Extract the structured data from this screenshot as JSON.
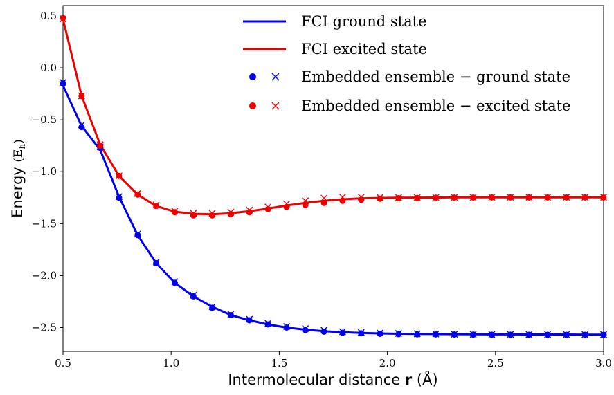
{
  "chart_data": {
    "type": "line",
    "xlabel": "Intermolecular distance",
    "xlabel_bold": "r",
    "xlabel_unit": "(Å)",
    "ylabel": "Energy",
    "ylabel_unit": "(E",
    "ylabel_sub": "h",
    "ylabel_close": ")",
    "xlim": [
      0.5,
      3.0
    ],
    "ylim": [
      -2.73,
      0.6
    ],
    "xticks": [
      {
        "v": 0.5,
        "label": "0.5"
      },
      {
        "v": 1.0,
        "label": "1.0"
      },
      {
        "v": 1.5,
        "label": "1.5"
      },
      {
        "v": 2.0,
        "label": "2.0"
      },
      {
        "v": 2.5,
        "label": "2.5"
      },
      {
        "v": 3.0,
        "label": "3.0"
      }
    ],
    "yticks": [
      {
        "v": 0.5,
        "label": "0.5"
      },
      {
        "v": 0.0,
        "label": "0.0"
      },
      {
        "v": -0.5,
        "label": "−0.5"
      },
      {
        "v": -1.0,
        "label": "−1.0"
      },
      {
        "v": -1.5,
        "label": "−1.5"
      },
      {
        "v": -2.0,
        "label": "−2.0"
      },
      {
        "v": -2.5,
        "label": "−2.5"
      }
    ],
    "grid": false,
    "legend_position": "top-right",
    "x": [
      0.5,
      0.586,
      0.672,
      0.759,
      0.845,
      0.931,
      1.017,
      1.103,
      1.19,
      1.276,
      1.362,
      1.448,
      1.534,
      1.621,
      1.707,
      1.793,
      1.879,
      1.966,
      2.052,
      2.138,
      2.224,
      2.31,
      2.397,
      2.483,
      2.569,
      2.655,
      2.741,
      2.828,
      2.914,
      3.0
    ],
    "series": [
      {
        "name": "FCI ground state",
        "kind": "line",
        "color": "#0000ee",
        "values": [
          -0.17,
          -0.56,
          -0.79,
          -1.24,
          -1.61,
          -1.88,
          -2.07,
          -2.2,
          -2.3,
          -2.38,
          -2.43,
          -2.47,
          -2.5,
          -2.52,
          -2.535,
          -2.545,
          -2.552,
          -2.557,
          -2.56,
          -2.562,
          -2.563,
          -2.564,
          -2.565,
          -2.566,
          -2.566,
          -2.567,
          -2.567,
          -2.567,
          -2.568,
          -2.568
        ]
      },
      {
        "name": "FCI excited state",
        "kind": "line",
        "color": "#ee0000",
        "values": [
          0.47,
          -0.27,
          -0.74,
          -1.04,
          -1.22,
          -1.33,
          -1.385,
          -1.405,
          -1.41,
          -1.4,
          -1.38,
          -1.355,
          -1.325,
          -1.3,
          -1.28,
          -1.265,
          -1.257,
          -1.252,
          -1.25,
          -1.249,
          -1.248,
          -1.247,
          -1.247,
          -1.246,
          -1.246,
          -1.246,
          -1.246,
          -1.246,
          -1.246,
          -1.246
        ]
      },
      {
        "name": "Embedded ensemble − ground state",
        "kind": "markers",
        "color": "#0000ee",
        "dots": [
          -0.15,
          -0.57,
          -0.77,
          -1.25,
          -1.61,
          -1.88,
          -2.07,
          -2.2,
          -2.31,
          -2.38,
          -2.43,
          -2.47,
          -2.5,
          -2.525,
          -2.54,
          -2.55,
          -2.555,
          -2.56,
          -2.563,
          -2.565,
          -2.566,
          -2.567,
          -2.568,
          -2.569,
          -2.569,
          -2.57,
          -2.57,
          -2.57,
          -2.57,
          -2.57
        ],
        "crosses": [
          -0.14,
          -0.55,
          -0.76,
          -1.24,
          -1.6,
          -1.87,
          -2.06,
          -2.19,
          -2.3,
          -2.37,
          -2.42,
          -2.46,
          -2.49,
          -2.51,
          -2.525,
          -2.54,
          -2.548,
          -2.553,
          -2.557,
          -2.56,
          -2.562,
          -2.564,
          -2.565,
          -2.566,
          -2.566,
          -2.567,
          -2.567,
          -2.567,
          -2.568,
          -2.568
        ]
      },
      {
        "name": "Embedded ensemble − excited state",
        "kind": "markers",
        "color": "#ee0000",
        "dots": [
          0.48,
          -0.27,
          -0.75,
          -1.04,
          -1.22,
          -1.33,
          -1.39,
          -1.42,
          -1.42,
          -1.41,
          -1.39,
          -1.36,
          -1.34,
          -1.32,
          -1.3,
          -1.28,
          -1.27,
          -1.26,
          -1.255,
          -1.252,
          -1.25,
          -1.249,
          -1.248,
          -1.247,
          -1.247,
          -1.247,
          -1.247,
          -1.247,
          -1.247,
          -1.247
        ],
        "crosses": [
          0.47,
          -0.27,
          -0.74,
          -1.04,
          -1.21,
          -1.32,
          -1.38,
          -1.4,
          -1.4,
          -1.39,
          -1.37,
          -1.34,
          -1.31,
          -1.28,
          -1.255,
          -1.245,
          -1.245,
          -1.247,
          -1.248,
          -1.248,
          -1.248,
          -1.247,
          -1.247,
          -1.246,
          -1.246,
          -1.246,
          -1.246,
          -1.246,
          -1.246,
          -1.246
        ]
      }
    ]
  }
}
